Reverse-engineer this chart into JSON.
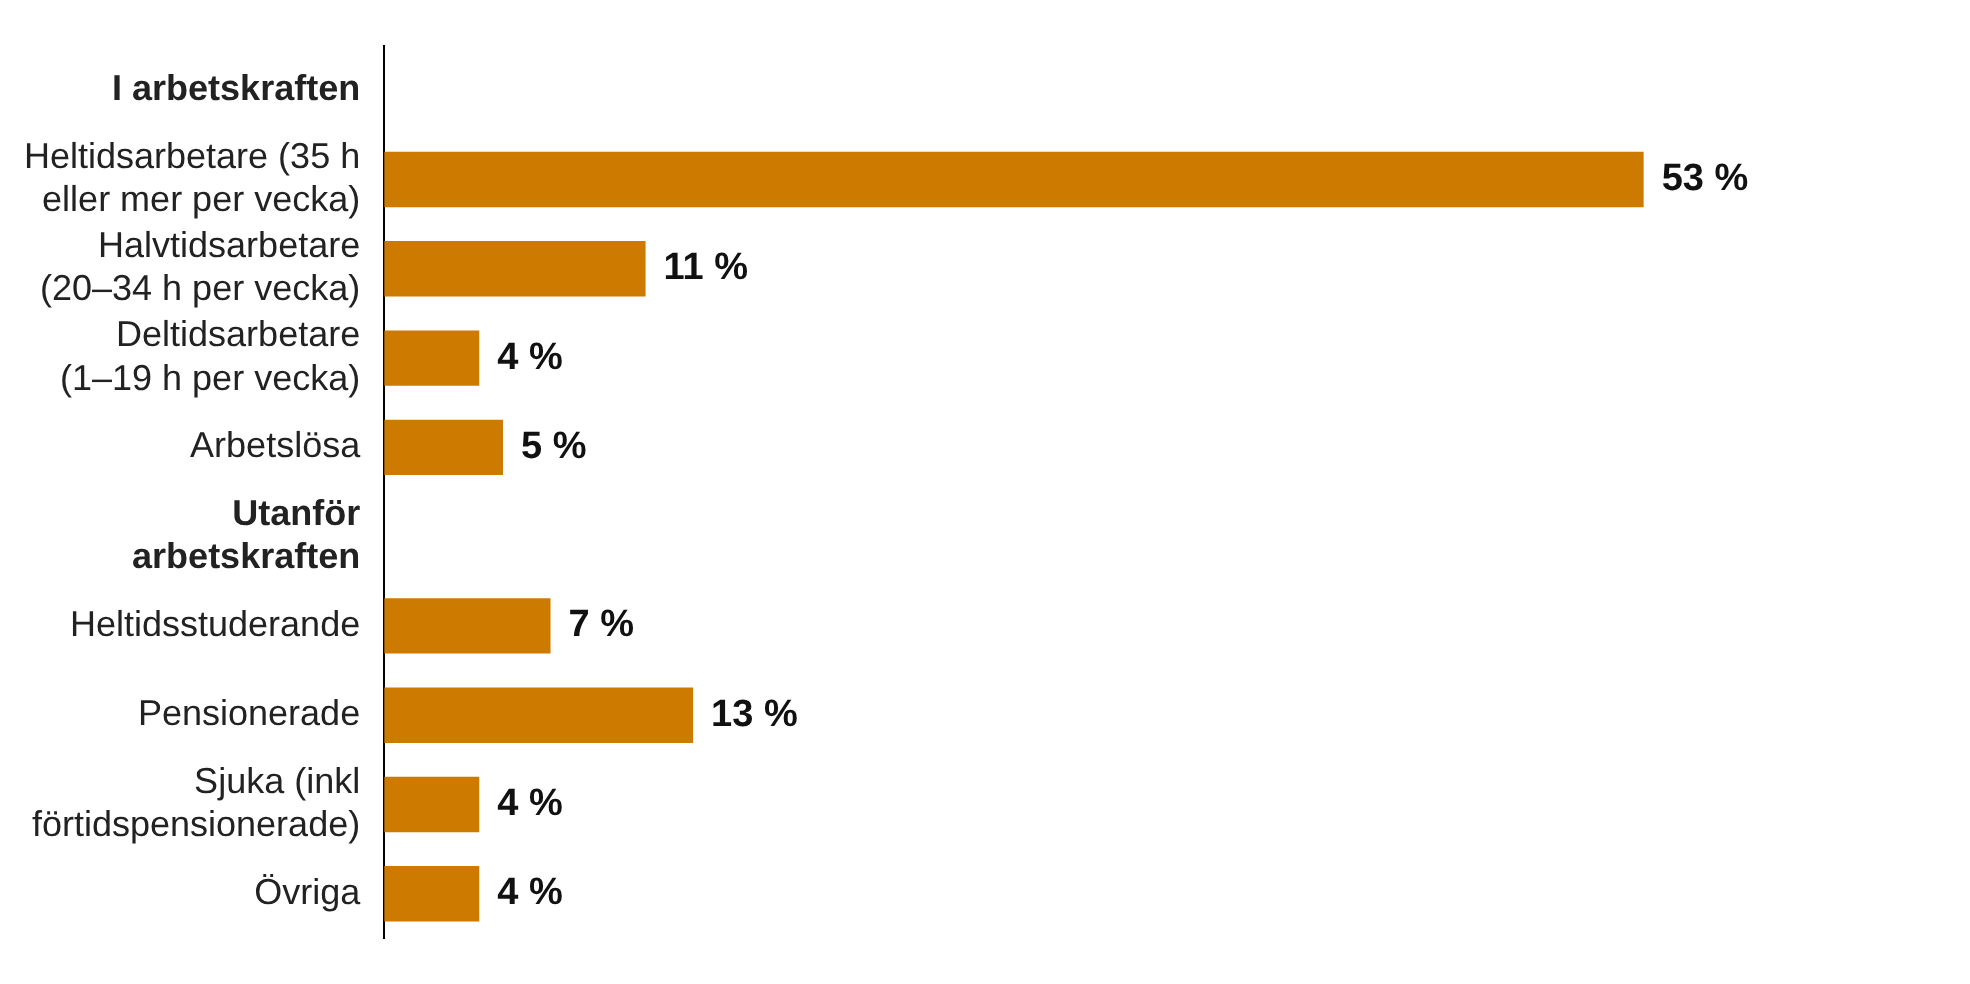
{
  "chart_data": {
    "type": "bar",
    "orientation": "horizontal",
    "categories": [
      "I arbetskraften",
      "Heltidsarbetare (35 h eller mer per vecka)",
      "Halvtidsarbetare (20–34 h per vecka)",
      "Deltidsarbetare (1–19 h per vecka)",
      "Arbetslösa",
      "Utanför arbetskraften",
      "Heltidsstuderande",
      "Pensionerade",
      "Sjuka (inkl förtidspensionerade)",
      "Övriga"
    ],
    "values": [
      null,
      53,
      11,
      4,
      5,
      null,
      7,
      13,
      4,
      4
    ],
    "value_labels": [
      null,
      "53 %",
      "11 %",
      "4 %",
      "5 %",
      null,
      "7 %",
      "13 %",
      "4 %",
      "4 %"
    ],
    "color": "#cc7a00",
    "legend": false
  }
}
